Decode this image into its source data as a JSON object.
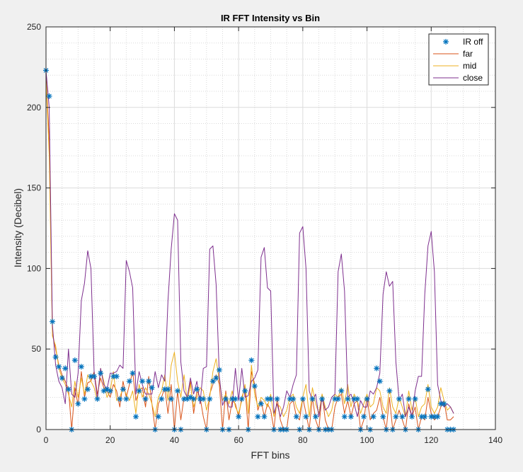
{
  "chart_data": {
    "type": "line",
    "title": "IR FFT Intensity vs Bin",
    "xlabel": "FFT bins",
    "ylabel": "Intensity (Decibel)",
    "xlim": [
      0,
      140
    ],
    "ylim": [
      0,
      250
    ],
    "xticks": [
      0,
      20,
      40,
      60,
      80,
      100,
      120,
      140
    ],
    "yticks": [
      0,
      50,
      100,
      150,
      200,
      250
    ],
    "grid": true,
    "minor_grid": true,
    "legend_position": "top-right",
    "x": [
      0,
      1,
      2,
      3,
      4,
      5,
      6,
      7,
      8,
      9,
      10,
      11,
      12,
      13,
      14,
      15,
      16,
      17,
      18,
      19,
      20,
      21,
      22,
      23,
      24,
      25,
      26,
      27,
      28,
      29,
      30,
      31,
      32,
      33,
      34,
      35,
      36,
      37,
      38,
      39,
      40,
      41,
      42,
      43,
      44,
      45,
      46,
      47,
      48,
      49,
      50,
      51,
      52,
      53,
      54,
      55,
      56,
      57,
      58,
      59,
      60,
      61,
      62,
      63,
      64,
      65,
      66,
      67,
      68,
      69,
      70,
      71,
      72,
      73,
      74,
      75,
      76,
      77,
      78,
      79,
      80,
      81,
      82,
      83,
      84,
      85,
      86,
      87,
      88,
      89,
      90,
      91,
      92,
      93,
      94,
      95,
      96,
      97,
      98,
      99,
      100,
      101,
      102,
      103,
      104,
      105,
      106,
      107,
      108,
      109,
      110,
      111,
      112,
      113,
      114,
      115,
      116,
      117,
      118,
      119,
      120,
      121,
      122,
      123,
      124,
      125,
      126,
      127
    ],
    "series": [
      {
        "name": "IR off",
        "style": "markers",
        "marker": "*",
        "color": "#0072bd",
        "values": [
          223,
          207,
          67,
          45,
          39,
          32,
          38,
          25,
          0,
          43,
          16,
          39,
          19,
          25,
          33,
          33,
          19,
          35,
          24,
          25,
          24,
          33,
          33,
          19,
          25,
          19,
          30,
          35,
          8,
          24,
          30,
          19,
          30,
          26,
          0,
          8,
          19,
          25,
          25,
          19,
          0,
          24,
          0,
          19,
          19,
          20,
          19,
          25,
          19,
          19,
          0,
          19,
          30,
          32,
          37,
          0,
          19,
          0,
          19,
          19,
          8,
          19,
          24,
          0,
          43,
          27,
          8,
          16,
          8,
          19,
          19,
          0,
          19,
          0,
          0,
          0,
          19,
          19,
          8,
          0,
          19,
          8,
          0,
          19,
          8,
          0,
          19,
          0,
          0,
          0,
          19,
          19,
          24,
          8,
          19,
          8,
          19,
          19,
          0,
          8,
          19,
          0,
          8,
          38,
          30,
          8,
          0,
          24,
          0,
          8,
          19,
          8,
          0,
          19,
          8,
          19,
          0,
          8,
          8,
          25,
          8,
          8,
          8,
          16,
          16,
          0,
          0,
          0
        ]
      },
      {
        "name": "far",
        "style": "line",
        "color": "#d95319",
        "values": [
          220,
          180,
          60,
          50,
          40,
          34,
          30,
          25,
          0,
          26,
          15,
          36,
          20,
          29,
          30,
          36,
          22,
          32,
          26,
          24,
          20,
          28,
          24,
          14,
          30,
          20,
          28,
          36,
          18,
          24,
          26,
          14,
          33,
          16,
          0,
          16,
          20,
          26,
          10,
          28,
          0,
          24,
          6,
          20,
          20,
          30,
          10,
          24,
          20,
          8,
          0,
          22,
          28,
          34,
          28,
          0,
          24,
          6,
          18,
          16,
          8,
          20,
          26,
          0,
          36,
          28,
          12,
          18,
          8,
          16,
          12,
          0,
          20,
          6,
          0,
          0,
          16,
          18,
          8,
          6,
          20,
          10,
          0,
          20,
          6,
          0,
          22,
          6,
          0,
          0,
          14,
          20,
          22,
          10,
          18,
          8,
          16,
          18,
          0,
          6,
          20,
          6,
          10,
          12,
          20,
          8,
          0,
          20,
          0,
          6,
          12,
          6,
          0,
          16,
          8,
          14,
          0,
          8,
          6,
          20,
          10,
          6,
          8,
          14,
          18,
          6,
          6,
          8
        ]
      },
      {
        "name": "mid",
        "style": "line",
        "color": "#edb120",
        "values": [
          218,
          170,
          58,
          52,
          38,
          32,
          28,
          22,
          14,
          30,
          20,
          32,
          22,
          34,
          30,
          26,
          18,
          38,
          30,
          20,
          24,
          36,
          18,
          20,
          26,
          22,
          18,
          24,
          10,
          28,
          20,
          26,
          22,
          16,
          8,
          20,
          24,
          34,
          18,
          40,
          48,
          30,
          20,
          34,
          18,
          28,
          14,
          20,
          26,
          24,
          12,
          20,
          36,
          44,
          30,
          18,
          22,
          16,
          24,
          14,
          10,
          18,
          28,
          10,
          40,
          22,
          14,
          20,
          18,
          14,
          22,
          8,
          16,
          14,
          8,
          12,
          20,
          22,
          14,
          10,
          20,
          28,
          8,
          26,
          16,
          10,
          22,
          14,
          8,
          12,
          22,
          20,
          26,
          16,
          28,
          14,
          22,
          18,
          10,
          16,
          22,
          14,
          16,
          26,
          24,
          14,
          10,
          26,
          14,
          10,
          20,
          14,
          8,
          24,
          12,
          20,
          8,
          14,
          16,
          28,
          14,
          10,
          14,
          26,
          18,
          12,
          14,
          10
        ]
      },
      {
        "name": "close",
        "style": "line",
        "color": "#7e2f8e",
        "values": [
          223,
          200,
          65,
          40,
          30,
          26,
          16,
          50,
          22,
          20,
          35,
          80,
          91,
          111,
          100,
          35,
          19,
          38,
          28,
          25,
          35,
          35,
          36,
          40,
          38,
          105,
          98,
          88,
          22,
          36,
          28,
          22,
          22,
          22,
          36,
          26,
          34,
          30,
          80,
          112,
          134,
          130,
          42,
          24,
          20,
          32,
          22,
          30,
          16,
          38,
          39,
          112,
          114,
          90,
          33,
          15,
          20,
          14,
          14,
          38,
          18,
          38,
          20,
          21,
          30,
          32,
          37,
          107,
          113,
          88,
          86,
          10,
          16,
          8,
          14,
          24,
          20,
          28,
          34,
          122,
          126,
          100,
          24,
          18,
          22,
          8,
          20,
          12,
          14,
          20,
          22,
          98,
          109,
          86,
          20,
          22,
          16,
          8,
          18,
          14,
          14,
          24,
          22,
          26,
          35,
          84,
          98,
          89,
          92,
          42,
          18,
          22,
          8,
          14,
          8,
          24,
          33,
          33,
          84,
          114,
          123,
          98,
          28,
          18,
          14,
          16,
          14,
          10
        ]
      }
    ]
  }
}
